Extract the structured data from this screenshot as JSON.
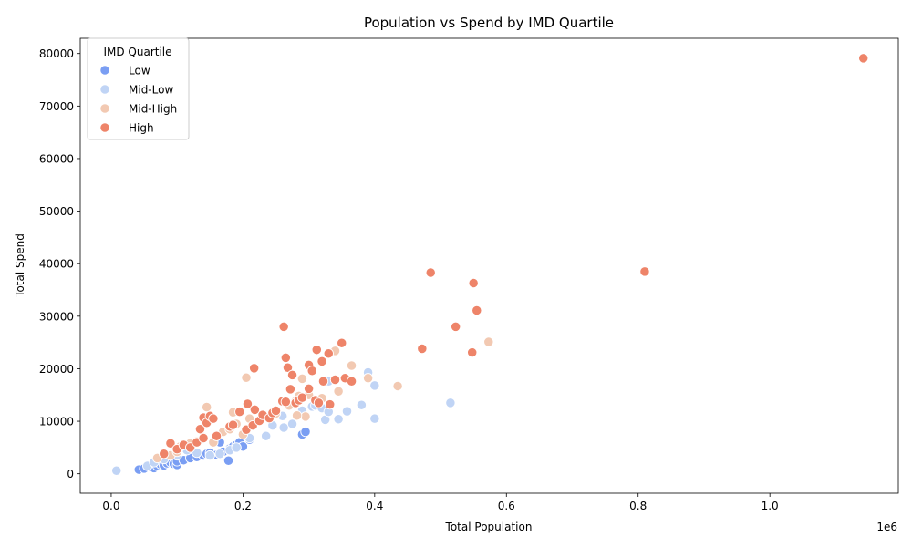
{
  "chart_data": {
    "type": "scatter",
    "title": "Population vs Spend by IMD Quartile",
    "xlabel": "Total Population",
    "ylabel": "Total Spend",
    "x_offset_text": "1e6",
    "xlim": [
      -0.047,
      1.195
    ],
    "ylim": [
      -3700,
      82900
    ],
    "xticks": [
      0.0,
      0.2,
      0.4,
      0.6,
      0.8,
      1.0
    ],
    "xtick_labels": [
      "0.0",
      "0.2",
      "0.4",
      "0.6",
      "0.8",
      "1.0"
    ],
    "yticks": [
      0,
      10000,
      20000,
      30000,
      40000,
      50000,
      60000,
      70000,
      80000
    ],
    "ytick_labels": [
      "0",
      "10000",
      "20000",
      "30000",
      "40000",
      "50000",
      "60000",
      "70000",
      "80000"
    ],
    "grid": false,
    "legend": {
      "title": "IMD Quartile",
      "placement": "top-left"
    },
    "series": [
      {
        "name": "Low",
        "color": "#7a9ef3",
        "points": [
          [
            0.042,
            800
          ],
          [
            0.05,
            1000
          ],
          [
            0.06,
            1300
          ],
          [
            0.065,
            1100
          ],
          [
            0.07,
            1500
          ],
          [
            0.075,
            1800
          ],
          [
            0.08,
            1600
          ],
          [
            0.085,
            2000
          ],
          [
            0.09,
            2200
          ],
          [
            0.095,
            1900
          ],
          [
            0.1,
            1700
          ],
          [
            0.1,
            2400
          ],
          [
            0.11,
            2600
          ],
          [
            0.12,
            3000
          ],
          [
            0.13,
            3200
          ],
          [
            0.14,
            3500
          ],
          [
            0.145,
            3800
          ],
          [
            0.15,
            4000
          ],
          [
            0.16,
            3600
          ],
          [
            0.17,
            4200
          ],
          [
            0.178,
            2500
          ],
          [
            0.18,
            4800
          ],
          [
            0.185,
            5200
          ],
          [
            0.19,
            5500
          ],
          [
            0.195,
            6000
          ],
          [
            0.2,
            5200
          ],
          [
            0.21,
            6500
          ],
          [
            0.165,
            6000
          ],
          [
            0.29,
            7500
          ],
          [
            0.295,
            8000
          ]
        ]
      },
      {
        "name": "Mid-Low",
        "color": "#c0d4f5",
        "points": [
          [
            0.008,
            600
          ],
          [
            0.055,
            1500
          ],
          [
            0.065,
            2200
          ],
          [
            0.08,
            2800
          ],
          [
            0.1,
            3500
          ],
          [
            0.115,
            4500
          ],
          [
            0.13,
            4000
          ],
          [
            0.15,
            3500
          ],
          [
            0.165,
            3800
          ],
          [
            0.18,
            4500
          ],
          [
            0.19,
            5000
          ],
          [
            0.21,
            6800
          ],
          [
            0.235,
            7200
          ],
          [
            0.245,
            9200
          ],
          [
            0.26,
            11000
          ],
          [
            0.262,
            8800
          ],
          [
            0.275,
            9500
          ],
          [
            0.29,
            12000
          ],
          [
            0.305,
            12800
          ],
          [
            0.31,
            13000
          ],
          [
            0.32,
            12500
          ],
          [
            0.325,
            10300
          ],
          [
            0.33,
            17600
          ],
          [
            0.33,
            11800
          ],
          [
            0.345,
            10400
          ],
          [
            0.358,
            11900
          ],
          [
            0.38,
            13100
          ],
          [
            0.39,
            19300
          ],
          [
            0.4,
            16800
          ],
          [
            0.4,
            10500
          ],
          [
            0.515,
            13500
          ]
        ]
      },
      {
        "name": "Mid-High",
        "color": "#f2c9b2",
        "points": [
          [
            0.07,
            3000
          ],
          [
            0.09,
            3500
          ],
          [
            0.1,
            4200
          ],
          [
            0.105,
            5200
          ],
          [
            0.12,
            5800
          ],
          [
            0.13,
            6200
          ],
          [
            0.14,
            7000
          ],
          [
            0.145,
            12700
          ],
          [
            0.155,
            6000
          ],
          [
            0.17,
            8000
          ],
          [
            0.18,
            8500
          ],
          [
            0.185,
            11700
          ],
          [
            0.19,
            9500
          ],
          [
            0.2,
            7500
          ],
          [
            0.205,
            18300
          ],
          [
            0.21,
            10500
          ],
          [
            0.23,
            11000
          ],
          [
            0.25,
            11500
          ],
          [
            0.27,
            13000
          ],
          [
            0.28,
            13800
          ],
          [
            0.285,
            14800
          ],
          [
            0.29,
            18100
          ],
          [
            0.295,
            10900
          ],
          [
            0.3,
            15000
          ],
          [
            0.32,
            14400
          ],
          [
            0.34,
            23400
          ],
          [
            0.345,
            15700
          ],
          [
            0.365,
            20600
          ],
          [
            0.39,
            18200
          ],
          [
            0.435,
            16700
          ],
          [
            0.573,
            25100
          ],
          [
            0.282,
            11100
          ]
        ]
      },
      {
        "name": "High",
        "color": "#ee8469",
        "points": [
          [
            0.08,
            3800
          ],
          [
            0.09,
            5800
          ],
          [
            0.1,
            4700
          ],
          [
            0.11,
            5500
          ],
          [
            0.12,
            5000
          ],
          [
            0.13,
            6000
          ],
          [
            0.135,
            8500
          ],
          [
            0.14,
            10700
          ],
          [
            0.14,
            6800
          ],
          [
            0.145,
            9700
          ],
          [
            0.15,
            11000
          ],
          [
            0.155,
            10500
          ],
          [
            0.16,
            7200
          ],
          [
            0.18,
            9000
          ],
          [
            0.185,
            9300
          ],
          [
            0.195,
            11800
          ],
          [
            0.205,
            8400
          ],
          [
            0.207,
            13300
          ],
          [
            0.215,
            9200
          ],
          [
            0.217,
            20100
          ],
          [
            0.218,
            12200
          ],
          [
            0.225,
            10100
          ],
          [
            0.23,
            11200
          ],
          [
            0.24,
            10600
          ],
          [
            0.245,
            11600
          ],
          [
            0.25,
            12000
          ],
          [
            0.26,
            13800
          ],
          [
            0.262,
            28000
          ],
          [
            0.265,
            22100
          ],
          [
            0.268,
            20200
          ],
          [
            0.272,
            16100
          ],
          [
            0.275,
            18800
          ],
          [
            0.28,
            13500
          ],
          [
            0.285,
            14000
          ],
          [
            0.29,
            14500
          ],
          [
            0.3,
            16200
          ],
          [
            0.3,
            20700
          ],
          [
            0.305,
            19600
          ],
          [
            0.31,
            14000
          ],
          [
            0.312,
            23600
          ],
          [
            0.315,
            13500
          ],
          [
            0.32,
            21400
          ],
          [
            0.322,
            17600
          ],
          [
            0.33,
            22900
          ],
          [
            0.332,
            13200
          ],
          [
            0.34,
            17900
          ],
          [
            0.35,
            24900
          ],
          [
            0.355,
            18200
          ],
          [
            0.365,
            17600
          ],
          [
            0.472,
            23800
          ],
          [
            0.485,
            38300
          ],
          [
            0.523,
            28000
          ],
          [
            0.548,
            23100
          ],
          [
            0.55,
            36300
          ],
          [
            0.555,
            31100
          ],
          [
            0.81,
            38500
          ],
          [
            1.142,
            79100
          ],
          [
            0.265,
            13700
          ]
        ]
      }
    ]
  }
}
